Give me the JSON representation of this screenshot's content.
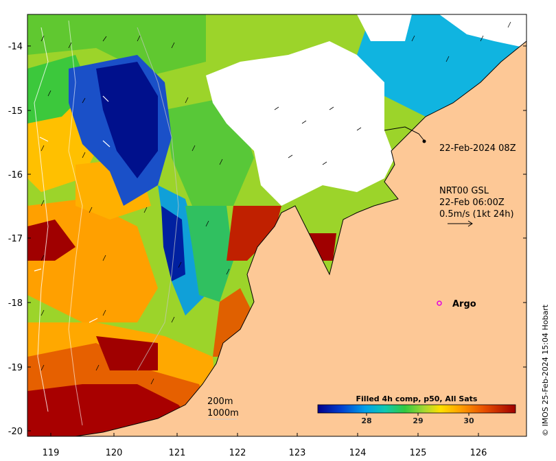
{
  "map": {
    "lon_ticks": [
      "119",
      "120",
      "121",
      "122",
      "123",
      "124",
      "125",
      "126"
    ],
    "lat_ticks": [
      "-14",
      "-15",
      "-16",
      "-17",
      "-18",
      "-19",
      "-20"
    ],
    "colors": {
      "land": "#fdc896",
      "cloud": "#ffffff",
      "coast": "#000000"
    }
  },
  "annotations": {
    "track_label": "22-Feb-2024 08Z",
    "current_line1": "NRT00 GSL",
    "current_line2": "22-Feb 06:00Z",
    "current_line3": "0.5m/s (1kt 24h)",
    "argo_label": "Argo",
    "depth_200": "200m",
    "depth_1000": "1000m"
  },
  "colorbar": {
    "title": "Filled 4h comp, p50, All Sats",
    "ticks": [
      "28",
      "29",
      "30"
    ],
    "colors": [
      "#00008b",
      "#0050d0",
      "#00b4e6",
      "#10c8a0",
      "#3ccd3c",
      "#b4dc28",
      "#ffd700",
      "#ff9a00",
      "#e65000",
      "#a00000"
    ]
  },
  "credit": "© IMOS 25-Feb-2024 15:04 Hobart"
}
